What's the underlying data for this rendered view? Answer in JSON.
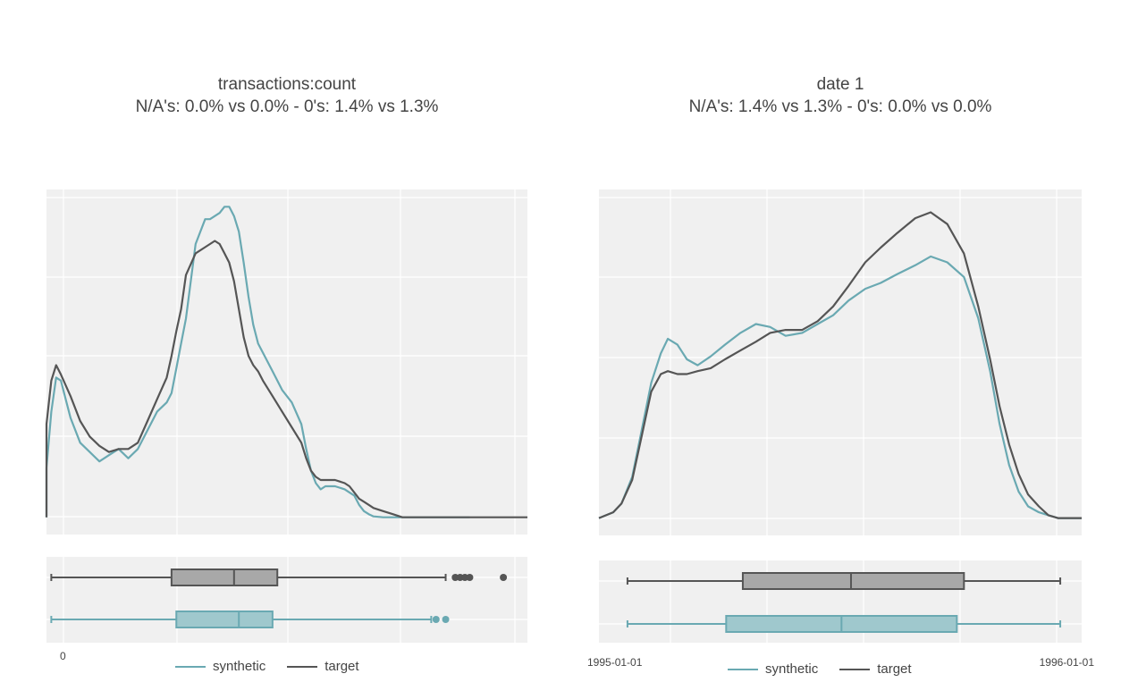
{
  "colors": {
    "synthetic": "#6aa9b2",
    "target": "#555555",
    "panel_bg": "#f0f0f0",
    "grid": "#ffffff",
    "box_synthetic_fill": "#9fc8cd",
    "box_target_fill": "#a8a8a8"
  },
  "legend": {
    "synthetic": "synthetic",
    "target": "target"
  },
  "chart_data": [
    {
      "type": "density+boxplot",
      "title": "transactions:count",
      "subtitle": "N/A's: 0.0% vs 0.0% - 0's: 1.4% vs 1.3%",
      "x_tick_labels": [
        "0"
      ],
      "xlim": [
        0,
        100
      ],
      "ylim": [
        0,
        1
      ],
      "grid": true,
      "legend_position": "bottom",
      "series": [
        {
          "name": "synthetic",
          "x": [
            -4,
            -2,
            0,
            1,
            2,
            3,
            5,
            7,
            9,
            11,
            13,
            15,
            17,
            19,
            21,
            23,
            25,
            26,
            27,
            28,
            29,
            31,
            33,
            34,
            35,
            36,
            37,
            38,
            39,
            40,
            41,
            42,
            43,
            44,
            45,
            47,
            49,
            51,
            53,
            54,
            55,
            56,
            57,
            58,
            60,
            62,
            63,
            64,
            65,
            66,
            67,
            68,
            70,
            72,
            74,
            76,
            78,
            82,
            86,
            88
          ],
          "y": [
            0.0,
            0.03,
            0.16,
            0.34,
            0.45,
            0.44,
            0.32,
            0.24,
            0.21,
            0.18,
            0.2,
            0.22,
            0.19,
            0.22,
            0.28,
            0.34,
            0.37,
            0.4,
            0.48,
            0.56,
            0.64,
            0.88,
            0.96,
            0.96,
            0.97,
            0.98,
            1.0,
            1.0,
            0.97,
            0.92,
            0.82,
            0.71,
            0.62,
            0.56,
            0.53,
            0.47,
            0.41,
            0.37,
            0.3,
            0.22,
            0.15,
            0.11,
            0.09,
            0.1,
            0.1,
            0.09,
            0.08,
            0.07,
            0.04,
            0.02,
            0.01,
            0.003,
            0.0,
            0.0,
            0.0,
            0.0,
            0.0,
            0.0,
            0.0,
            0.0
          ]
        },
        {
          "name": "target",
          "x": [
            -4,
            -2,
            0,
            1,
            2,
            3,
            5,
            7,
            9,
            11,
            13,
            15,
            17,
            19,
            21,
            23,
            25,
            26,
            27,
            28,
            29,
            31,
            33,
            34,
            35,
            36,
            37,
            38,
            39,
            40,
            41,
            42,
            43,
            44,
            45,
            47,
            49,
            51,
            53,
            54,
            55,
            56,
            57,
            58,
            60,
            62,
            63,
            64,
            65,
            66,
            67,
            68,
            70,
            72,
            74,
            76,
            78,
            82,
            86,
            88,
            92,
            96,
            100
          ],
          "y": [
            0.0,
            0.05,
            0.3,
            0.44,
            0.49,
            0.46,
            0.39,
            0.31,
            0.26,
            0.23,
            0.21,
            0.22,
            0.22,
            0.24,
            0.31,
            0.38,
            0.45,
            0.52,
            0.6,
            0.67,
            0.78,
            0.85,
            0.87,
            0.88,
            0.89,
            0.88,
            0.85,
            0.82,
            0.76,
            0.67,
            0.58,
            0.52,
            0.49,
            0.47,
            0.44,
            0.39,
            0.34,
            0.29,
            0.24,
            0.19,
            0.15,
            0.13,
            0.12,
            0.12,
            0.12,
            0.11,
            0.1,
            0.08,
            0.06,
            0.05,
            0.04,
            0.03,
            0.02,
            0.01,
            0.0,
            0.0,
            0.0,
            0.0,
            0.0,
            0.0,
            0.0,
            0.0,
            0.0
          ]
        }
      ],
      "boxplots": [
        {
          "name": "target",
          "whisker_low": 1,
          "q1": 26,
          "median": 39,
          "q3": 48,
          "whisker_high": 83,
          "outliers": [
            85,
            86,
            87,
            88,
            95
          ]
        },
        {
          "name": "synthetic",
          "whisker_low": 1,
          "q1": 27,
          "median": 40,
          "q3": 47,
          "whisker_high": 80,
          "outliers": [
            81,
            83
          ]
        }
      ]
    },
    {
      "type": "density+boxplot",
      "title": "date 1",
      "subtitle": "N/A's: 1.4% vs 1.3% - 0's: 0.0% vs 0.0%",
      "x_tick_labels": [
        "1995-01-01",
        "1996-01-01"
      ],
      "xlim": [
        "1994-12-08",
        "1996-01-18"
      ],
      "ylim": [
        0,
        1
      ],
      "grid": true,
      "legend_position": "bottom",
      "series": [
        {
          "name": "synthetic",
          "x": [
            "1994-12-08",
            "1994-12-14",
            "1994-12-20",
            "1994-12-27",
            "1995-01-05",
            "1995-01-13",
            "1995-01-21",
            "1995-01-29",
            "1995-02-04",
            "1995-02-12",
            "1995-02-20",
            "1995-03-01",
            "1995-03-12",
            "1995-03-24",
            "1995-04-06",
            "1995-04-19",
            "1995-05-01",
            "1995-05-14",
            "1995-05-28",
            "1995-06-10",
            "1995-06-23",
            "1995-07-06",
            "1995-07-20",
            "1995-08-02",
            "1995-08-16",
            "1995-08-31",
            "1995-09-13",
            "1995-09-27",
            "1995-10-11",
            "1995-10-23",
            "1995-11-02",
            "1995-11-10",
            "1995-11-18",
            "1995-11-26",
            "1995-12-04",
            "1995-12-13",
            "1995-12-21",
            "1995-12-29",
            "1996-01-06",
            "1996-01-12",
            "1996-01-18"
          ],
          "y": [
            0.0,
            0.01,
            0.02,
            0.05,
            0.14,
            0.3,
            0.46,
            0.56,
            0.61,
            0.59,
            0.54,
            0.52,
            0.55,
            0.59,
            0.63,
            0.66,
            0.65,
            0.62,
            0.63,
            0.66,
            0.69,
            0.74,
            0.78,
            0.8,
            0.83,
            0.86,
            0.89,
            0.87,
            0.82,
            0.68,
            0.5,
            0.32,
            0.18,
            0.09,
            0.04,
            0.02,
            0.01,
            0.0,
            0.0,
            0.0,
            0.0
          ]
        },
        {
          "name": "target",
          "x": [
            "1994-12-08",
            "1994-12-14",
            "1994-12-20",
            "1994-12-27",
            "1995-01-05",
            "1995-01-13",
            "1995-01-21",
            "1995-01-29",
            "1995-02-04",
            "1995-02-12",
            "1995-02-20",
            "1995-03-01",
            "1995-03-12",
            "1995-03-24",
            "1995-04-06",
            "1995-04-19",
            "1995-05-01",
            "1995-05-14",
            "1995-05-28",
            "1995-06-10",
            "1995-06-23",
            "1995-07-06",
            "1995-07-20",
            "1995-08-02",
            "1995-08-16",
            "1995-08-31",
            "1995-09-13",
            "1995-09-27",
            "1995-10-11",
            "1995-10-23",
            "1995-11-02",
            "1995-11-10",
            "1995-11-18",
            "1995-11-26",
            "1995-12-04",
            "1995-12-13",
            "1995-12-21",
            "1995-12-29",
            "1996-01-06",
            "1996-01-12",
            "1996-01-18"
          ],
          "y": [
            0.0,
            0.01,
            0.02,
            0.05,
            0.13,
            0.28,
            0.43,
            0.49,
            0.5,
            0.49,
            0.49,
            0.5,
            0.51,
            0.54,
            0.57,
            0.6,
            0.63,
            0.64,
            0.64,
            0.67,
            0.72,
            0.79,
            0.87,
            0.92,
            0.97,
            1.02,
            1.04,
            1.0,
            0.9,
            0.72,
            0.54,
            0.38,
            0.25,
            0.15,
            0.08,
            0.04,
            0.01,
            0.0,
            0.0,
            0.0,
            0.0
          ]
        }
      ],
      "boxplots": [
        {
          "name": "target",
          "whisker_low": "1995-01-01",
          "q1": "1995-04-08",
          "median": "1995-07-08",
          "q3": "1995-10-11",
          "whisker_high": "1995-12-31",
          "outliers": []
        },
        {
          "name": "synthetic",
          "whisker_low": "1995-01-01",
          "q1": "1995-03-25",
          "median": "1995-06-30",
          "q3": "1995-10-05",
          "whisker_high": "1995-12-31",
          "outliers": []
        }
      ]
    }
  ]
}
